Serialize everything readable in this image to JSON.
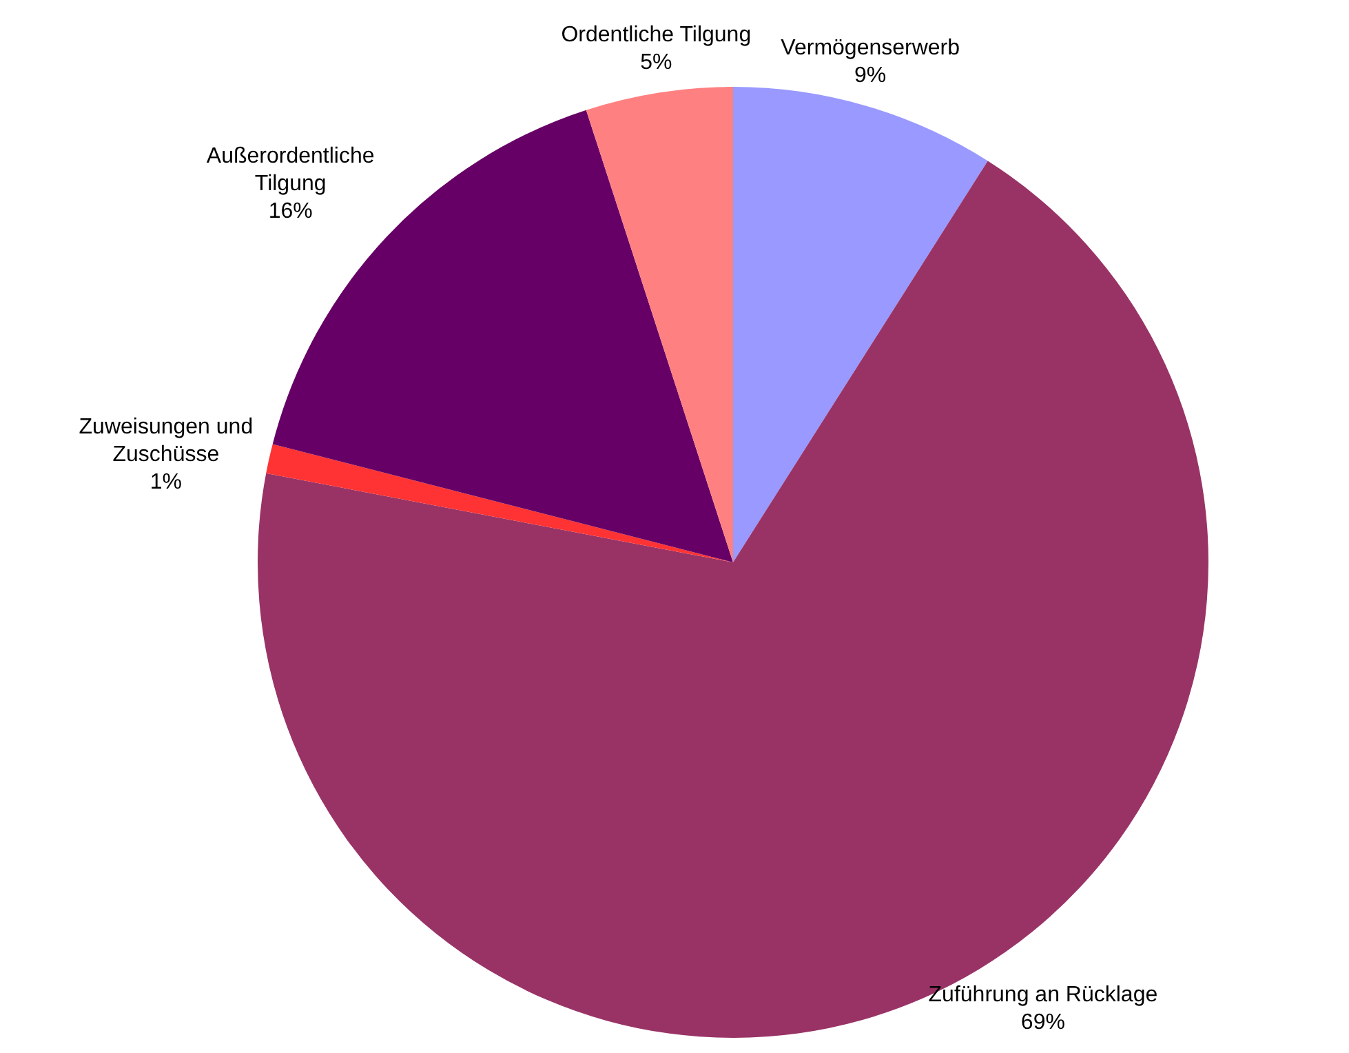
{
  "chart_data": {
    "type": "pie",
    "categories": [
      "Vermögenserwerb",
      "Zuführung an Rücklage",
      "Zuweisungen und Zuschüsse",
      "Außerordentliche Tilgung",
      "Ordentliche Tilgung"
    ],
    "values": [
      9,
      69,
      1,
      16,
      5
    ],
    "colors": [
      "#9999ff",
      "#993366",
      "#ff3333",
      "#660066",
      "#ff8080"
    ],
    "value_labels": [
      "9%",
      "69%",
      "1%",
      "16%",
      "5%"
    ],
    "legend": false
  }
}
